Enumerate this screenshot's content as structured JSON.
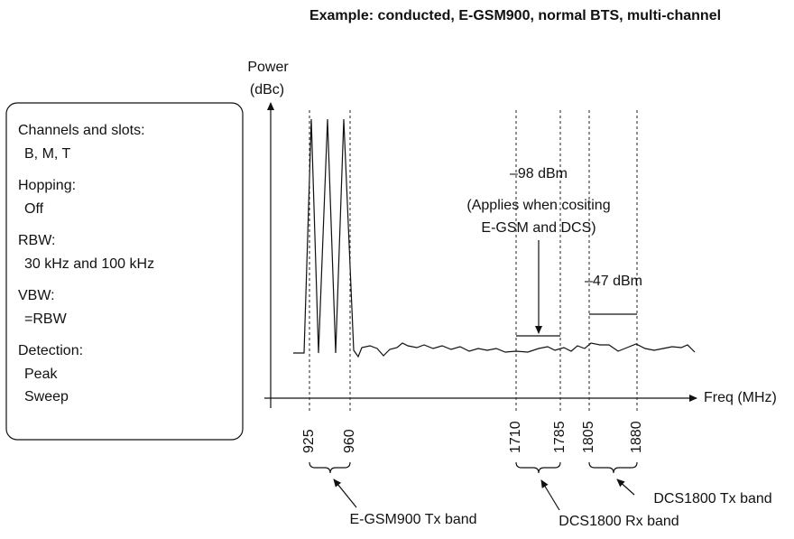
{
  "title": "Example: conducted, E-GSM900, normal BTS, multi-channel",
  "y_axis_label": [
    "Power",
    "(dBc)"
  ],
  "x_axis_label": "Freq (MHz)",
  "settings": [
    {
      "label": "Channels and slots:",
      "values": [
        "B, M, T"
      ]
    },
    {
      "label": "Hopping:",
      "values": [
        "Off"
      ]
    },
    {
      "label": "RBW:",
      "values": [
        "30 kHz and 100 kHz"
      ]
    },
    {
      "label": "VBW:",
      "values": [
        "=RBW"
      ]
    },
    {
      "label": "Detection:",
      "values": [
        "Peak",
        "Sweep"
      ]
    }
  ],
  "frequency_markers": [
    "925",
    "960",
    "1710",
    "1785",
    "1805",
    "1880"
  ],
  "annotations": {
    "rx_limit": [
      "–98 dBm",
      "(Applies when cositing",
      "E-GSM and DCS)"
    ],
    "tx_limit": "–47 dBm"
  },
  "bands": [
    "E-GSM900 Tx band",
    "DCS1800 Rx band",
    "DCS1800 Tx band"
  ]
}
